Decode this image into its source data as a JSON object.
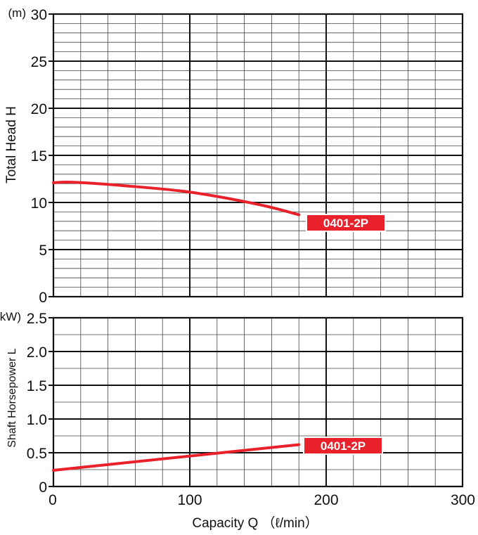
{
  "chart_data": [
    {
      "type": "line",
      "xlabel": "Capacity Q （ℓ/min）",
      "ylabel": "Total Head H",
      "y_unit": "(m)",
      "xlim": [
        0,
        300
      ],
      "ylim": [
        0,
        30
      ],
      "x_ticks": [
        "0",
        "100",
        "200",
        "300"
      ],
      "y_ticks": [
        "0",
        "5",
        "10",
        "15",
        "20",
        "25",
        "30"
      ],
      "grid": true,
      "series": [
        {
          "name": "0401-2P",
          "color": "#e8212a",
          "x": [
            0,
            15,
            50,
            100,
            150,
            180
          ],
          "y": [
            12.1,
            12.15,
            11.8,
            11.1,
            9.8,
            8.7
          ]
        }
      ]
    },
    {
      "type": "line",
      "xlabel": "Capacity Q （ℓ/min）",
      "ylabel": "Shaft Horsepower L",
      "y_unit": "(kW)",
      "xlim": [
        0,
        300
      ],
      "ylim": [
        0,
        2.5
      ],
      "x_ticks": [
        "0",
        "100",
        "200",
        "300"
      ],
      "y_ticks": [
        "0",
        "0.5",
        "1.0",
        "1.5",
        "2.0",
        "2.5"
      ],
      "grid": true,
      "series": [
        {
          "name": "0401-2P",
          "color": "#e8212a",
          "x": [
            0,
            180
          ],
          "y": [
            0.24,
            0.62
          ]
        }
      ]
    }
  ]
}
